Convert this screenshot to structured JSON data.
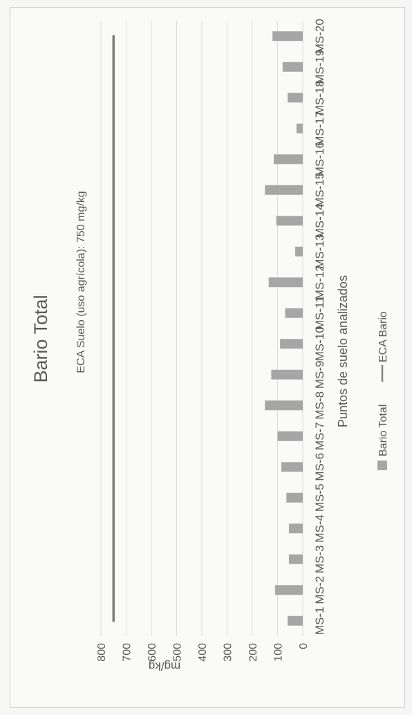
{
  "chart_data": {
    "type": "bar",
    "title": "Bario Total",
    "xlabel": "Puntos de suelo analizados",
    "ylabel": "mg/kg",
    "ylim": [
      0,
      800
    ],
    "yticks": [
      "0",
      "100",
      "200",
      "300",
      "400",
      "500",
      "600",
      "700",
      "800"
    ],
    "categories": [
      "MS-1",
      "MS-2",
      "MS-3",
      "MS-4",
      "MS-5",
      "MS-6",
      "MS-7",
      "MS-8",
      "MS-9",
      "MS-10",
      "MS-11",
      "MS-12",
      "MS-13",
      "MS-14",
      "MS-15",
      "MS-16",
      "MS-17",
      "MS-18",
      "MS-19",
      "MS-20"
    ],
    "series": [
      {
        "name": "Bario Total",
        "type": "bar",
        "color": "#a6a6a6",
        "values": [
          60,
          110,
          55,
          55,
          65,
          85,
          100,
          150,
          125,
          90,
          70,
          135,
          30,
          105,
          150,
          115,
          25,
          60,
          80,
          120
        ]
      },
      {
        "name": "ECA Bario",
        "type": "line",
        "color": "#7f7f7f",
        "value": 750
      }
    ],
    "annotation": "ECA Suelo (uso agrícola): 750 mg/kg",
    "grid": true,
    "legend": "bottom"
  }
}
